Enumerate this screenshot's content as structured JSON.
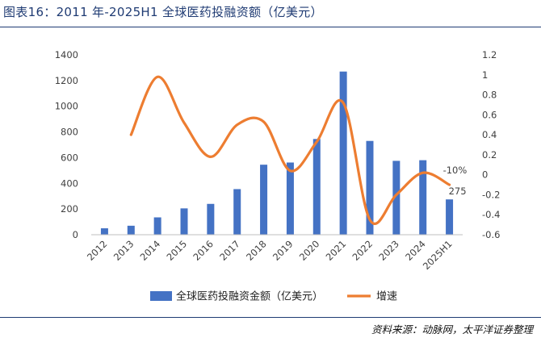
{
  "title": "图表16：2011 年-2025H1 全球医药投融资额（亿美元）",
  "source": "资料来源：动脉网，太平洋证券整理",
  "chart_data": {
    "type": "bar",
    "categories": [
      "2012",
      "2013",
      "2014",
      "2015",
      "2016",
      "2017",
      "2018",
      "2019",
      "2020",
      "2021",
      "2022",
      "2023",
      "2024",
      "2025H1"
    ],
    "series": [
      {
        "name": "全球医药投融资金额（亿美元）",
        "type": "bar",
        "axis": "left",
        "color": "#4472c4",
        "values": [
          50,
          70,
          135,
          205,
          240,
          355,
          545,
          562,
          745,
          1270,
          730,
          575,
          580,
          275
        ]
      },
      {
        "name": "增速",
        "type": "line",
        "axis": "right",
        "color": "#ed7d31",
        "values": [
          null,
          0.4,
          0.98,
          0.52,
          0.18,
          0.5,
          0.53,
          0.04,
          0.33,
          0.72,
          -0.45,
          -0.2,
          0.02,
          -0.1
        ]
      }
    ],
    "left_axis": {
      "min": 0,
      "max": 1400,
      "ticks": [
        "0",
        "200",
        "400",
        "600",
        "800",
        "1000",
        "1200",
        "1400"
      ]
    },
    "right_axis": {
      "min": -0.6,
      "max": 1.2,
      "ticks": [
        "-0.6",
        "-0.4",
        "-0.2",
        "0",
        "0.2",
        "0.4",
        "0.6",
        "0.8",
        "1",
        "1.2"
      ]
    },
    "annotations": [
      "-10%",
      "275"
    ],
    "grid": false,
    "legend": "bottom"
  }
}
